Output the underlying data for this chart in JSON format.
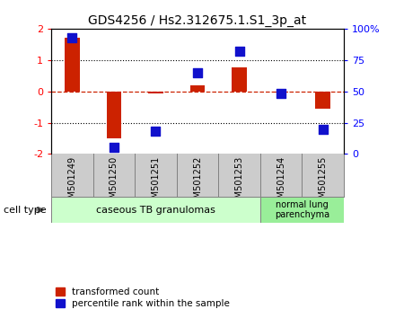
{
  "title": "GDS4256 / Hs2.312675.1.S1_3p_at",
  "samples": [
    "GSM501249",
    "GSM501250",
    "GSM501251",
    "GSM501252",
    "GSM501253",
    "GSM501254",
    "GSM501255"
  ],
  "red_values": [
    1.7,
    -1.5,
    -0.07,
    0.2,
    0.75,
    -0.05,
    -0.55
  ],
  "blue_values": [
    0.93,
    0.05,
    0.18,
    0.65,
    0.82,
    0.48,
    0.2
  ],
  "red_color": "#cc2200",
  "blue_color": "#1111cc",
  "ylim": [
    -2,
    2
  ],
  "group1_label": "caseous TB granulomas",
  "group2_label": "normal lung\nparenchyma",
  "group1_color": "#ccffcc",
  "group2_color": "#99ee99",
  "label_bg_color": "#cccccc",
  "cell_type_label": "cell type",
  "legend1_label": "transformed count",
  "legend2_label": "percentile rank within the sample",
  "bar_width": 0.35,
  "dot_size": 55
}
